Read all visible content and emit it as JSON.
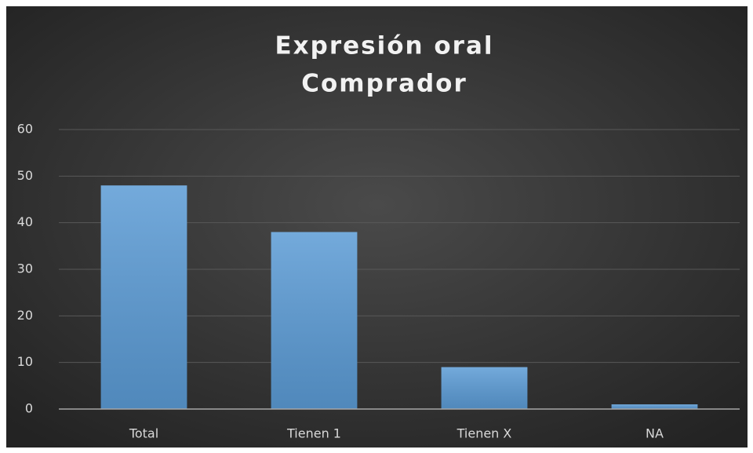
{
  "chart_data": {
    "type": "bar",
    "title": [
      "Expresión oral",
      "Comprador"
    ],
    "categories": [
      "Total",
      "Tienen 1",
      "Tienen X",
      "NA"
    ],
    "values": [
      48,
      38,
      9,
      1
    ],
    "color": "#5b9bd5",
    "ylim": [
      0,
      60
    ],
    "yticks": [
      0,
      10,
      20,
      30,
      40,
      50,
      60
    ],
    "grid": true
  }
}
